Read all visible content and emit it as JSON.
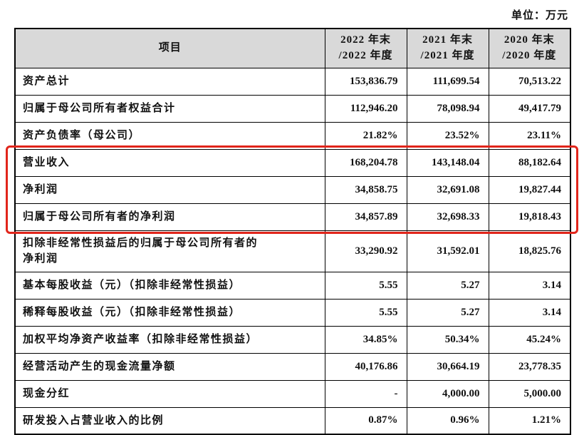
{
  "unit_label": "单位：万元",
  "colors": {
    "highlight": "#e1251b",
    "header_bg": "#d9d9d9",
    "border": "#000000"
  },
  "table": {
    "columns": [
      "项目",
      "2022 年末\n/2022 年度",
      "2021 年末\n/2021 年度",
      "2020 年末\n/2020 年度"
    ],
    "rows": [
      {
        "label": "资产总计",
        "values": [
          "153,836.79",
          "111,699.54",
          "70,513.22"
        ],
        "highlighted": false
      },
      {
        "label": "归属于母公司所有者权益合计",
        "values": [
          "112,946.20",
          "78,098.94",
          "49,417.79"
        ],
        "highlighted": false
      },
      {
        "label": "资产负债率（母公司）",
        "values": [
          "21.82%",
          "23.52%",
          "23.11%"
        ],
        "highlighted": false
      },
      {
        "label": "营业收入",
        "values": [
          "168,204.78",
          "143,148.04",
          "88,182.64"
        ],
        "highlighted": true
      },
      {
        "label": "净利润",
        "values": [
          "34,858.75",
          "32,691.08",
          "19,827.44"
        ],
        "highlighted": true
      },
      {
        "label": "归属于母公司所有者的净利润",
        "values": [
          "34,857.89",
          "32,698.33",
          "19,818.43"
        ],
        "highlighted": true
      },
      {
        "label": "扣除非经常性损益后的归属于母公司所有者的\n净利润",
        "values": [
          "33,290.92",
          "31,592.01",
          "18,825.76"
        ],
        "highlighted": false
      },
      {
        "label": "基本每股收益（元）（扣除非经常性损益）",
        "values": [
          "5.55",
          "5.27",
          "3.14"
        ],
        "highlighted": false
      },
      {
        "label": "稀释每股收益（元）（扣除非经常性损益）",
        "values": [
          "5.55",
          "5.27",
          "3.14"
        ],
        "highlighted": false
      },
      {
        "label": "加权平均净资产收益率（扣除非经常性损益）",
        "values": [
          "34.85%",
          "50.34%",
          "45.24%"
        ],
        "highlighted": false
      },
      {
        "label": "经营活动产生的现金流量净额",
        "values": [
          "40,176.86",
          "30,664.19",
          "23,778.35"
        ],
        "highlighted": false
      },
      {
        "label": "现金分红",
        "values": [
          "-",
          "4,000.00",
          "5,000.00"
        ],
        "highlighted": false
      },
      {
        "label": "研发投入占营业收入的比例",
        "values": [
          "0.87%",
          "0.96%",
          "1.21%"
        ],
        "highlighted": false
      }
    ]
  }
}
